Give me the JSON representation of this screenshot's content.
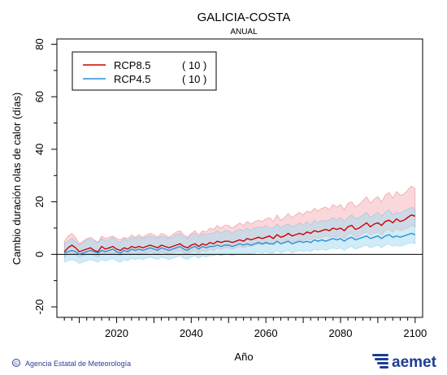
{
  "chart_data": {
    "type": "line",
    "title": "GALICIA-COSTA",
    "subtitle": "ANUAL",
    "xlabel": "Año",
    "ylabel": "Cambio duración olas de calor (días)",
    "xlim": [
      2004,
      2102
    ],
    "ylim": [
      -24,
      82
    ],
    "x_ticks": [
      2020,
      2040,
      2060,
      2080,
      2100
    ],
    "y_ticks": [
      -20,
      0,
      20,
      40,
      60,
      80
    ],
    "zero_line": 0,
    "grid": false,
    "legend_position": "top-left",
    "x": [
      2006,
      2007,
      2008,
      2009,
      2010,
      2011,
      2012,
      2013,
      2014,
      2015,
      2016,
      2017,
      2018,
      2019,
      2020,
      2021,
      2022,
      2023,
      2024,
      2025,
      2026,
      2027,
      2028,
      2029,
      2030,
      2031,
      2032,
      2033,
      2034,
      2035,
      2036,
      2037,
      2038,
      2039,
      2040,
      2041,
      2042,
      2043,
      2044,
      2045,
      2046,
      2047,
      2048,
      2049,
      2050,
      2051,
      2052,
      2053,
      2054,
      2055,
      2056,
      2057,
      2058,
      2059,
      2060,
      2061,
      2062,
      2063,
      2064,
      2065,
      2066,
      2067,
      2068,
      2069,
      2070,
      2071,
      2072,
      2073,
      2074,
      2075,
      2076,
      2077,
      2078,
      2079,
      2080,
      2081,
      2082,
      2083,
      2084,
      2085,
      2086,
      2087,
      2088,
      2089,
      2090,
      2091,
      2092,
      2093,
      2094,
      2095,
      2096,
      2097,
      2098,
      2099,
      2100
    ],
    "series": [
      {
        "name": "RCP8.5",
        "legend_count": "( 10 )",
        "color": "#cc0000",
        "band_color": "#f4b6be",
        "values": [
          1,
          2.5,
          3.5,
          2.5,
          1,
          1.5,
          2,
          2.5,
          1.5,
          1,
          3,
          2,
          2.5,
          3,
          2,
          1.5,
          2.5,
          2,
          3,
          2.5,
          3,
          2.5,
          3,
          3.5,
          3,
          2.5,
          3.5,
          3,
          2.5,
          3,
          3.5,
          4,
          3,
          2.5,
          3.5,
          4,
          3,
          4,
          3.5,
          4.5,
          4,
          5,
          4.5,
          5,
          5,
          4.5,
          5,
          5.5,
          5,
          6,
          5.5,
          6,
          6.5,
          6,
          6.5,
          7,
          6,
          7.5,
          6.5,
          7,
          8,
          7,
          7.5,
          8,
          7.5,
          8.5,
          8,
          9,
          8.5,
          9,
          9.5,
          9,
          10,
          9.5,
          10,
          9,
          10.5,
          11,
          9.5,
          10,
          11,
          12,
          10.5,
          11.5,
          12,
          11,
          12.5,
          13,
          12,
          13.5,
          12.5,
          13,
          14,
          15,
          14.5
        ],
        "lower": [
          -1,
          0,
          0.5,
          0,
          -1,
          -0.5,
          0,
          0.5,
          -0.5,
          -1,
          0.5,
          0,
          0,
          0.5,
          0,
          -0.5,
          0.5,
          0,
          0.5,
          0,
          0.5,
          0,
          0.5,
          1,
          0.5,
          0,
          1,
          0.5,
          0,
          0.5,
          1,
          1.5,
          0.5,
          0,
          1,
          1.5,
          0.5,
          1.5,
          1,
          2,
          1.5,
          2.5,
          2,
          2.5,
          2.5,
          2,
          2.5,
          3,
          2.5,
          3,
          3,
          3.5,
          4,
          3.5,
          4,
          4.5,
          3.5,
          5,
          4,
          4.5,
          5.5,
          4.5,
          5,
          5.5,
          5,
          6,
          5.5,
          6.5,
          6,
          6.5,
          7,
          6.5,
          7,
          6.5,
          7,
          6,
          7.5,
          8,
          6.5,
          7,
          8,
          8.5,
          7.5,
          8,
          8.5,
          7.5,
          9,
          9.5,
          8.5,
          10,
          9,
          9.5,
          10,
          11,
          10.5
        ],
        "upper": [
          5,
          7,
          8,
          6.5,
          4,
          5,
          6,
          6.5,
          5.5,
          4.5,
          7,
          6,
          6.5,
          7,
          6,
          5.5,
          6.5,
          6,
          7.5,
          6.5,
          7.5,
          6.5,
          7.5,
          8,
          7.5,
          6.5,
          8,
          7.5,
          6.5,
          7.5,
          8.5,
          9,
          7.5,
          6.5,
          8,
          9,
          7.5,
          9,
          8.5,
          10,
          9.5,
          11,
          10,
          11,
          11,
          10,
          11,
          12,
          11,
          12.5,
          11.5,
          12.5,
          13,
          12.5,
          13.5,
          14,
          12.5,
          15,
          13,
          14,
          15.5,
          14,
          15,
          16,
          15,
          16.5,
          16,
          17.5,
          16.5,
          17.5,
          18,
          17,
          19,
          18,
          19,
          17,
          19.5,
          20,
          18,
          19,
          20.5,
          22,
          19.5,
          21,
          22,
          20,
          22.5,
          23.5,
          21.5,
          24,
          22.5,
          23,
          24.5,
          26,
          25
        ]
      },
      {
        "name": "RCP4.5",
        "legend_count": "( 10 )",
        "color": "#2d8fd6",
        "band_color": "#a9dcef",
        "values": [
          0.5,
          1,
          1.5,
          1,
          0,
          0.5,
          1,
          1.5,
          1,
          0.5,
          1.5,
          1,
          1.5,
          2,
          1,
          0.5,
          1.5,
          1,
          2,
          1.5,
          2,
          1.5,
          2,
          2.5,
          2,
          1.5,
          2.5,
          2,
          1.5,
          2,
          2.5,
          3,
          2,
          1.5,
          2.5,
          3,
          2,
          3,
          2.5,
          3,
          3,
          3.5,
          3,
          3.5,
          3.5,
          3,
          3.5,
          4,
          3.5,
          4,
          3.5,
          4,
          4.5,
          4,
          4.5,
          4,
          4,
          5,
          4,
          4.5,
          5,
          4,
          4.5,
          5,
          4.5,
          5,
          4.5,
          5.5,
          5,
          5.5,
          5,
          5.5,
          6,
          5.5,
          6,
          5,
          6,
          6.5,
          5.5,
          6,
          6.5,
          7,
          6,
          6.5,
          7,
          6,
          7,
          7.5,
          6.5,
          7,
          6.5,
          7,
          7.5,
          8,
          7.5
        ],
        "lower": [
          -3,
          -2.5,
          -2,
          -2.5,
          -3.5,
          -3,
          -2.5,
          -2,
          -2.5,
          -3,
          -2,
          -2.5,
          -2,
          -1.5,
          -2.5,
          -3,
          -2,
          -2.5,
          -1.5,
          -2,
          -1.5,
          -2,
          -1.5,
          -1,
          -1.5,
          -2,
          -1,
          -1.5,
          -2,
          -1.5,
          -1,
          -0.5,
          -1.5,
          -2,
          -1,
          -0.5,
          -1.5,
          -0.5,
          -1,
          -0.5,
          -0.5,
          0,
          -0.5,
          0,
          0,
          -0.5,
          0,
          0.5,
          0,
          0.5,
          0,
          0.5,
          1,
          0.5,
          1,
          0.5,
          0.5,
          1.5,
          0.5,
          1,
          1.5,
          0.5,
          1,
          1.5,
          1,
          1.5,
          1,
          2,
          1.5,
          2,
          1.5,
          2,
          2.5,
          2,
          2.5,
          1.5,
          2.5,
          3,
          2,
          2.5,
          3,
          3.5,
          2.5,
          3,
          3.5,
          2.5,
          3.5,
          4,
          3,
          3.5,
          3,
          3.5,
          4,
          4.5,
          4
        ],
        "upper": [
          4,
          5,
          6,
          5,
          3.5,
          4.5,
          5.5,
          6,
          5,
          4.5,
          6,
          5,
          5.5,
          6.5,
          5,
          4.5,
          6,
          5,
          6.5,
          6,
          6.5,
          6,
          6.5,
          7,
          6.5,
          6,
          7,
          6.5,
          6,
          6.5,
          7.5,
          8,
          6.5,
          6,
          7.5,
          8,
          6.5,
          8,
          7.5,
          8,
          8,
          9,
          8,
          9,
          9,
          8,
          9,
          9.5,
          9,
          10,
          9,
          10,
          10.5,
          10,
          11,
          10,
          10,
          11.5,
          10,
          11,
          11.5,
          10.5,
          11,
          12,
          11,
          12.5,
          11,
          13,
          12,
          13,
          12.5,
          13,
          14,
          13,
          14,
          12.5,
          14,
          15,
          13.5,
          14,
          15,
          16,
          14,
          15,
          16,
          14.5,
          16,
          17,
          15,
          16,
          15.5,
          16.5,
          17,
          18,
          17
        ]
      }
    ]
  },
  "footer": {
    "credit": "Agencia Estatal de Meteorología",
    "copyright_symbol": "©",
    "logo_text": "aemet"
  }
}
